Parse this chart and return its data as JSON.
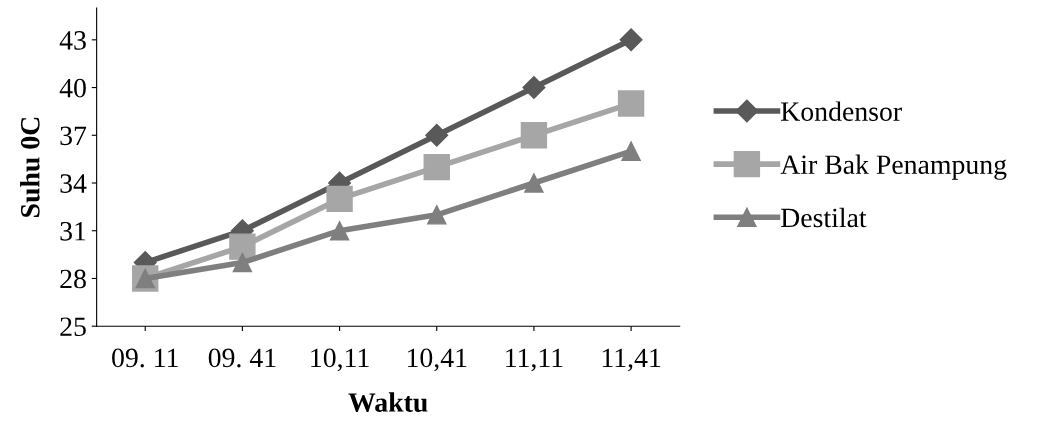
{
  "chart_data": {
    "type": "line",
    "xlabel": "Waktu",
    "ylabel": "Suhu 0C",
    "categories": [
      "09. 11",
      "09. 41",
      "10,11",
      "10,41",
      "11,11",
      "11,41"
    ],
    "series": [
      {
        "name": "Kondensor",
        "color": "#595959",
        "marker": "diamond",
        "values": [
          29,
          31,
          34,
          37,
          40,
          43
        ]
      },
      {
        "name": "Air Bak Penampung",
        "color": "#a6a6a6",
        "marker": "square",
        "values": [
          28,
          30,
          33,
          35,
          37,
          39
        ]
      },
      {
        "name": "Destilat",
        "color": "#7f7f7f",
        "marker": "triangle",
        "values": [
          28,
          29,
          31,
          32,
          34,
          36
        ]
      }
    ],
    "ylim": [
      25,
      45
    ],
    "yticks": [
      25,
      28,
      31,
      34,
      37,
      40,
      43
    ],
    "grid": false,
    "legend": "right",
    "line_style": "solid"
  }
}
